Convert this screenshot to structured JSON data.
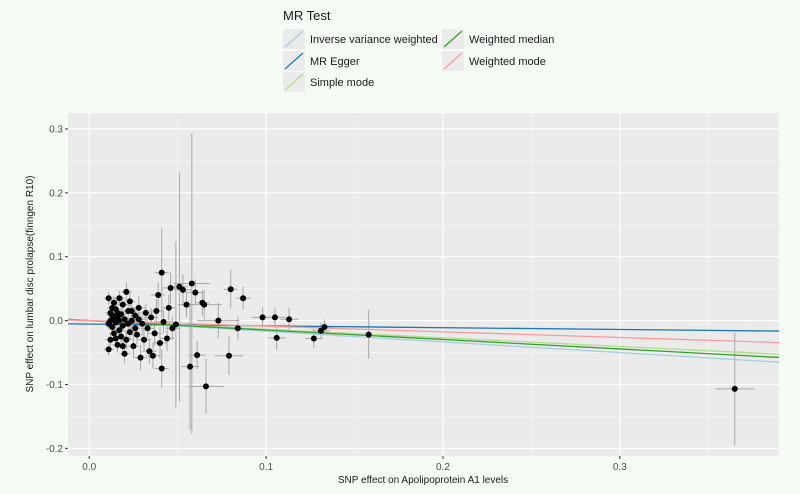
{
  "chart_data": {
    "type": "scatter",
    "xlabel": "SNP effect on Apolipoprotein A1 levels",
    "ylabel": "SNP effect on lumbar disc prolapse(finngen R10)",
    "xlim": [
      -0.012,
      0.39
    ],
    "ylim": [
      -0.212,
      0.325
    ],
    "x_ticks": [
      0.0,
      0.1,
      0.2,
      0.3
    ],
    "x_tick_labels": [
      "0.0",
      "0.1",
      "0.2",
      "0.3"
    ],
    "y_ticks": [
      -0.2,
      -0.1,
      0.0,
      0.1,
      0.2,
      0.3
    ],
    "y_tick_labels": [
      "-0.2",
      "-0.1",
      "0.0",
      "0.1",
      "0.2",
      "0.3"
    ],
    "grid": true,
    "legend": {
      "title": "MR Test",
      "placement": "top",
      "entries": [
        {
          "label": "Inverse variance weighted",
          "color": "#a6cee3"
        },
        {
          "label": "MR Egger",
          "color": "#1f78b4"
        },
        {
          "label": "Simple mode",
          "color": "#b2df8a"
        },
        {
          "label": "Weighted median",
          "color": "#33a02c"
        },
        {
          "label": "Weighted mode",
          "color": "#fb9a99"
        }
      ]
    },
    "lines": [
      {
        "name": "Inverse variance weighted",
        "color": "#a6cee3",
        "intercept": 0.0,
        "slope": -0.167
      },
      {
        "name": "MR Egger",
        "color": "#1f78b4",
        "intercept": -0.0055,
        "slope": -0.028
      },
      {
        "name": "Simple mode",
        "color": "#b2df8a",
        "intercept": 0.0,
        "slope": -0.135
      },
      {
        "name": "Weighted median",
        "color": "#33a02c",
        "intercept": 0.0,
        "slope": -0.148
      },
      {
        "name": "Weighted mode",
        "color": "#fb9a99",
        "intercept": 0.0,
        "slope": -0.088
      }
    ],
    "points": [
      {
        "x": 0.365,
        "y": -0.107,
        "xse": 0.011,
        "yse": 0.088
      },
      {
        "x": 0.158,
        "y": -0.022,
        "xse": 0.007,
        "yse": 0.038
      },
      {
        "x": 0.133,
        "y": -0.01,
        "xse": 0.005,
        "yse": 0.012
      },
      {
        "x": 0.131,
        "y": -0.016,
        "xse": 0.005,
        "yse": 0.012
      },
      {
        "x": 0.127,
        "y": -0.028,
        "xse": 0.005,
        "yse": 0.015
      },
      {
        "x": 0.113,
        "y": 0.002,
        "xse": 0.005,
        "yse": 0.018
      },
      {
        "x": 0.106,
        "y": -0.027,
        "xse": 0.005,
        "yse": 0.02
      },
      {
        "x": 0.105,
        "y": 0.005,
        "xse": 0.006,
        "yse": 0.016
      },
      {
        "x": 0.098,
        "y": 0.005,
        "xse": 0.006,
        "yse": 0.016
      },
      {
        "x": 0.087,
        "y": 0.035,
        "xse": 0.004,
        "yse": 0.018
      },
      {
        "x": 0.084,
        "y": -0.012,
        "xse": 0.005,
        "yse": 0.018
      },
      {
        "x": 0.08,
        "y": 0.049,
        "xse": 0.004,
        "yse": 0.03
      },
      {
        "x": 0.079,
        "y": -0.055,
        "xse": 0.008,
        "yse": 0.03
      },
      {
        "x": 0.073,
        "y": 0.0,
        "xse": 0.012,
        "yse": 0.028
      },
      {
        "x": 0.066,
        "y": -0.103,
        "xse": 0.01,
        "yse": 0.043
      },
      {
        "x": 0.065,
        "y": 0.025,
        "xse": 0.01,
        "yse": 0.023
      },
      {
        "x": 0.064,
        "y": 0.028,
        "xse": 0.004,
        "yse": 0.02
      },
      {
        "x": 0.061,
        "y": -0.054,
        "xse": 0.005,
        "yse": 0.022
      },
      {
        "x": 0.06,
        "y": 0.044,
        "xse": 0.005,
        "yse": 0.02
      },
      {
        "x": 0.058,
        "y": 0.058,
        "xse": 0.01,
        "yse": 0.235
      },
      {
        "x": 0.057,
        "y": -0.072,
        "xse": 0.005,
        "yse": 0.1
      },
      {
        "x": 0.055,
        "y": 0.025,
        "xse": 0.005,
        "yse": 0.02
      },
      {
        "x": 0.053,
        "y": 0.048,
        "xse": 0.005,
        "yse": 0.025
      },
      {
        "x": 0.051,
        "y": 0.053,
        "xse": 0.005,
        "yse": 0.18
      },
      {
        "x": 0.049,
        "y": -0.006,
        "xse": 0.004,
        "yse": 0.13
      },
      {
        "x": 0.046,
        "y": 0.051,
        "xse": 0.005,
        "yse": 0.025
      },
      {
        "x": 0.045,
        "y": 0.02,
        "xse": 0.004,
        "yse": 0.02
      },
      {
        "x": 0.042,
        "y": -0.002,
        "xse": 0.004,
        "yse": 0.018
      },
      {
        "x": 0.041,
        "y": 0.075,
        "xse": 0.004,
        "yse": 0.07
      },
      {
        "x": 0.041,
        "y": -0.075,
        "xse": 0.004,
        "yse": 0.03
      },
      {
        "x": 0.04,
        "y": -0.035,
        "xse": 0.004,
        "yse": 0.025
      },
      {
        "x": 0.038,
        "y": 0.015,
        "xse": 0.004,
        "yse": 0.018
      },
      {
        "x": 0.037,
        "y": -0.02,
        "xse": 0.004,
        "yse": 0.02
      },
      {
        "x": 0.035,
        "y": 0.005,
        "xse": 0.004,
        "yse": 0.015
      },
      {
        "x": 0.034,
        "y": -0.048,
        "xse": 0.004,
        "yse": 0.02
      },
      {
        "x": 0.033,
        "y": -0.012,
        "xse": 0.004,
        "yse": 0.015
      },
      {
        "x": 0.032,
        "y": 0.012,
        "xse": 0.004,
        "yse": 0.015
      },
      {
        "x": 0.031,
        "y": -0.03,
        "xse": 0.004,
        "yse": 0.018
      },
      {
        "x": 0.03,
        "y": -0.005,
        "xse": 0.004,
        "yse": 0.015
      },
      {
        "x": 0.029,
        "y": -0.058,
        "xse": 0.004,
        "yse": 0.02
      },
      {
        "x": 0.028,
        "y": 0.02,
        "xse": 0.004,
        "yse": 0.018
      },
      {
        "x": 0.027,
        "y": -0.022,
        "xse": 0.004,
        "yse": 0.015
      },
      {
        "x": 0.026,
        "y": 0.008,
        "xse": 0.003,
        "yse": 0.012
      },
      {
        "x": 0.025,
        "y": -0.04,
        "xse": 0.003,
        "yse": 0.018
      },
      {
        "x": 0.024,
        "y": 0.0,
        "xse": 0.003,
        "yse": 0.012
      },
      {
        "x": 0.023,
        "y": 0.03,
        "xse": 0.003,
        "yse": 0.015
      },
      {
        "x": 0.023,
        "y": -0.018,
        "xse": 0.003,
        "yse": 0.012
      },
      {
        "x": 0.022,
        "y": 0.015,
        "xse": 0.003,
        "yse": 0.012
      },
      {
        "x": 0.021,
        "y": -0.03,
        "xse": 0.003,
        "yse": 0.015
      },
      {
        "x": 0.021,
        "y": 0.045,
        "xse": 0.003,
        "yse": 0.015
      },
      {
        "x": 0.02,
        "y": 0.002,
        "xse": 0.003,
        "yse": 0.01
      },
      {
        "x": 0.02,
        "y": -0.052,
        "xse": 0.003,
        "yse": 0.015
      },
      {
        "x": 0.019,
        "y": 0.025,
        "xse": 0.003,
        "yse": 0.012
      },
      {
        "x": 0.019,
        "y": -0.008,
        "xse": 0.003,
        "yse": 0.01
      },
      {
        "x": 0.018,
        "y": 0.01,
        "xse": 0.003,
        "yse": 0.01
      },
      {
        "x": 0.018,
        "y": -0.025,
        "xse": 0.003,
        "yse": 0.012
      },
      {
        "x": 0.017,
        "y": 0.035,
        "xse": 0.003,
        "yse": 0.012
      },
      {
        "x": 0.017,
        "y": -0.015,
        "xse": 0.003,
        "yse": 0.01
      },
      {
        "x": 0.016,
        "y": 0.005,
        "xse": 0.003,
        "yse": 0.01
      },
      {
        "x": 0.016,
        "y": -0.038,
        "xse": 0.003,
        "yse": 0.012
      },
      {
        "x": 0.015,
        "y": 0.018,
        "xse": 0.003,
        "yse": 0.01
      },
      {
        "x": 0.015,
        "y": -0.003,
        "xse": 0.003,
        "yse": 0.01
      },
      {
        "x": 0.014,
        "y": 0.028,
        "xse": 0.003,
        "yse": 0.01
      },
      {
        "x": 0.014,
        "y": -0.02,
        "xse": 0.003,
        "yse": 0.01
      },
      {
        "x": 0.013,
        "y": 0.008,
        "xse": 0.003,
        "yse": 0.008
      },
      {
        "x": 0.013,
        "y": -0.01,
        "xse": 0.003,
        "yse": 0.008
      },
      {
        "x": 0.013,
        "y": 0.02,
        "xse": 0.003,
        "yse": 0.008
      },
      {
        "x": 0.012,
        "y": -0.03,
        "xse": 0.003,
        "yse": 0.01
      },
      {
        "x": 0.012,
        "y": 0.0,
        "xse": 0.003,
        "yse": 0.008
      },
      {
        "x": 0.012,
        "y": 0.012,
        "xse": 0.003,
        "yse": 0.008
      },
      {
        "x": 0.011,
        "y": -0.005,
        "xse": 0.003,
        "yse": 0.008
      },
      {
        "x": 0.011,
        "y": -0.045,
        "xse": 0.003,
        "yse": 0.01
      },
      {
        "x": 0.011,
        "y": 0.035,
        "xse": 0.003,
        "yse": 0.01
      },
      {
        "x": 0.022,
        "y": -0.005,
        "xse": 0.003,
        "yse": 0.01
      },
      {
        "x": 0.024,
        "y": 0.015,
        "xse": 0.003,
        "yse": 0.01
      },
      {
        "x": 0.026,
        "y": -0.012,
        "xse": 0.003,
        "yse": 0.01
      },
      {
        "x": 0.028,
        "y": 0.002,
        "xse": 0.004,
        "yse": 0.012
      },
      {
        "x": 0.019,
        "y": -0.04,
        "xse": 0.003,
        "yse": 0.012
      },
      {
        "x": 0.017,
        "y": 0.0,
        "xse": 0.003,
        "yse": 0.008
      },
      {
        "x": 0.016,
        "y": 0.012,
        "xse": 0.003,
        "yse": 0.008
      },
      {
        "x": 0.014,
        "y": 0.002,
        "xse": 0.003,
        "yse": 0.008
      },
      {
        "x": 0.015,
        "y": -0.028,
        "xse": 0.003,
        "yse": 0.01
      },
      {
        "x": 0.036,
        "y": -0.055,
        "xse": 0.004,
        "yse": 0.02
      },
      {
        "x": 0.044,
        "y": -0.028,
        "xse": 0.004,
        "yse": 0.02
      },
      {
        "x": 0.047,
        "y": -0.012,
        "xse": 0.004,
        "yse": 0.018
      },
      {
        "x": 0.039,
        "y": 0.04,
        "xse": 0.004,
        "yse": 0.02
      }
    ]
  }
}
